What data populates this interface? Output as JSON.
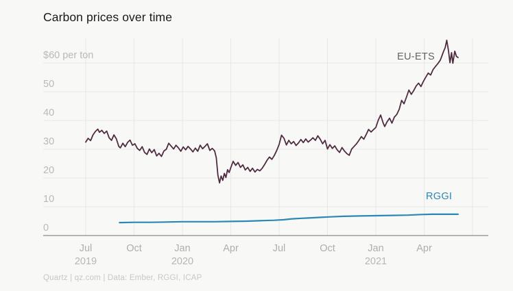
{
  "footer": {
    "credit": "Quartz | qz.com | Data: Ember, RGGI, ICAP"
  },
  "colors": {
    "background": "#f8f8f7",
    "grid": "#e7e7e4",
    "axis": "#8a8a87",
    "eu_ets": "#4f2b40",
    "rggi": "#2b87b4",
    "title_text": "#191919",
    "tick_text": "#b2b2af"
  },
  "chart_data": {
    "type": "line",
    "title": "Carbon prices over time",
    "xlabel": "",
    "ylabel": "$ per ton",
    "ylim": [
      0,
      60
    ],
    "x_unit": "months since Jul 2019",
    "grid": "on",
    "legend_position": "inline-annotations",
    "yticks": [
      {
        "value": 0,
        "label": "0"
      },
      {
        "value": 10,
        "label": "10"
      },
      {
        "value": 20,
        "label": "20"
      },
      {
        "value": 30,
        "label": "30"
      },
      {
        "value": 40,
        "label": "40"
      },
      {
        "value": 50,
        "label": "50"
      },
      {
        "value": 60,
        "label": "$60 per ton"
      }
    ],
    "xticks": [
      {
        "m": 0,
        "label": "Jul",
        "year": "2019"
      },
      {
        "m": 3,
        "label": "Oct",
        "year": ""
      },
      {
        "m": 6,
        "label": "Jan",
        "year": "2020"
      },
      {
        "m": 9,
        "label": "Apr",
        "year": ""
      },
      {
        "m": 12,
        "label": "Jul",
        "year": ""
      },
      {
        "m": 15,
        "label": "Oct",
        "year": ""
      },
      {
        "m": 18,
        "label": "Jan",
        "year": "2021"
      },
      {
        "m": 21,
        "label": "Apr",
        "year": ""
      },
      {
        "m": 24,
        "label": "",
        "year": ""
      }
    ],
    "series": [
      {
        "id": "eu-ets",
        "name": "EU-ETS",
        "color": "#4f2b40",
        "width": 1.8,
        "points": [
          [
            0.0,
            32.5
          ],
          [
            0.15,
            33.8
          ],
          [
            0.3,
            33.0
          ],
          [
            0.45,
            35.0
          ],
          [
            0.6,
            36.2
          ],
          [
            0.75,
            37.0
          ],
          [
            0.85,
            35.9
          ],
          [
            1.0,
            36.6
          ],
          [
            1.15,
            35.5
          ],
          [
            1.3,
            36.3
          ],
          [
            1.45,
            34.0
          ],
          [
            1.6,
            33.1
          ],
          [
            1.75,
            35.0
          ],
          [
            1.9,
            33.6
          ],
          [
            2.05,
            31.0
          ],
          [
            2.15,
            30.5
          ],
          [
            2.3,
            32.1
          ],
          [
            2.45,
            30.9
          ],
          [
            2.6,
            32.4
          ],
          [
            2.75,
            33.2
          ],
          [
            2.9,
            31.4
          ],
          [
            3.05,
            31.9
          ],
          [
            3.2,
            30.3
          ],
          [
            3.35,
            29.6
          ],
          [
            3.5,
            30.9
          ],
          [
            3.65,
            28.9
          ],
          [
            3.8,
            28.2
          ],
          [
            3.95,
            30.1
          ],
          [
            4.1,
            28.8
          ],
          [
            4.25,
            29.9
          ],
          [
            4.4,
            27.7
          ],
          [
            4.55,
            28.6
          ],
          [
            4.7,
            27.5
          ],
          [
            4.85,
            29.4
          ],
          [
            5.0,
            30.0
          ],
          [
            5.15,
            32.1
          ],
          [
            5.3,
            31.1
          ],
          [
            5.45,
            30.1
          ],
          [
            5.6,
            31.4
          ],
          [
            5.75,
            30.5
          ],
          [
            5.9,
            29.3
          ],
          [
            6.05,
            30.8
          ],
          [
            6.2,
            29.8
          ],
          [
            6.35,
            31.0
          ],
          [
            6.5,
            30.1
          ],
          [
            6.65,
            29.1
          ],
          [
            6.8,
            30.4
          ],
          [
            6.95,
            29.3
          ],
          [
            7.1,
            31.4
          ],
          [
            7.25,
            30.2
          ],
          [
            7.4,
            31.0
          ],
          [
            7.55,
            31.9
          ],
          [
            7.7,
            29.6
          ],
          [
            7.85,
            30.3
          ],
          [
            8.0,
            29.4
          ],
          [
            8.1,
            27.0
          ],
          [
            8.2,
            21.0
          ],
          [
            8.3,
            18.3
          ],
          [
            8.4,
            20.7
          ],
          [
            8.5,
            19.2
          ],
          [
            8.6,
            21.6
          ],
          [
            8.7,
            20.2
          ],
          [
            8.8,
            22.9
          ],
          [
            8.9,
            21.9
          ],
          [
            9.0,
            23.6
          ],
          [
            9.15,
            25.8
          ],
          [
            9.3,
            24.4
          ],
          [
            9.45,
            25.4
          ],
          [
            9.6,
            23.7
          ],
          [
            9.75,
            24.6
          ],
          [
            9.9,
            22.8
          ],
          [
            10.05,
            23.7
          ],
          [
            10.2,
            22.3
          ],
          [
            10.35,
            23.4
          ],
          [
            10.5,
            22.1
          ],
          [
            10.65,
            23.0
          ],
          [
            10.8,
            22.5
          ],
          [
            10.95,
            23.4
          ],
          [
            11.1,
            24.7
          ],
          [
            11.25,
            26.2
          ],
          [
            11.4,
            27.3
          ],
          [
            11.55,
            26.5
          ],
          [
            11.7,
            27.8
          ],
          [
            11.85,
            29.6
          ],
          [
            12.0,
            31.7
          ],
          [
            12.15,
            34.9
          ],
          [
            12.3,
            33.8
          ],
          [
            12.45,
            31.5
          ],
          [
            12.6,
            33.1
          ],
          [
            12.75,
            31.9
          ],
          [
            12.9,
            32.7
          ],
          [
            13.05,
            31.3
          ],
          [
            13.2,
            32.2
          ],
          [
            13.35,
            33.4
          ],
          [
            13.5,
            32.3
          ],
          [
            13.65,
            33.6
          ],
          [
            13.8,
            32.5
          ],
          [
            13.95,
            33.2
          ],
          [
            14.1,
            34.0
          ],
          [
            14.25,
            33.1
          ],
          [
            14.4,
            34.7
          ],
          [
            14.55,
            33.5
          ],
          [
            14.7,
            31.9
          ],
          [
            14.85,
            33.1
          ],
          [
            15.0,
            30.1
          ],
          [
            15.15,
            31.6
          ],
          [
            15.3,
            30.3
          ],
          [
            15.45,
            31.2
          ],
          [
            15.6,
            29.8
          ],
          [
            15.75,
            28.9
          ],
          [
            15.9,
            30.6
          ],
          [
            16.05,
            29.4
          ],
          [
            16.2,
            28.5
          ],
          [
            16.35,
            27.9
          ],
          [
            16.5,
            30.1
          ],
          [
            16.65,
            31.0
          ],
          [
            16.8,
            31.9
          ],
          [
            16.95,
            33.1
          ],
          [
            17.1,
            34.4
          ],
          [
            17.25,
            33.5
          ],
          [
            17.4,
            35.1
          ],
          [
            17.55,
            36.9
          ],
          [
            17.7,
            36.0
          ],
          [
            17.85,
            36.8
          ],
          [
            18.0,
            37.6
          ],
          [
            18.15,
            40.1
          ],
          [
            18.3,
            41.9
          ],
          [
            18.45,
            39.2
          ],
          [
            18.55,
            37.9
          ],
          [
            18.7,
            39.6
          ],
          [
            18.85,
            40.8
          ],
          [
            19.0,
            39.1
          ],
          [
            19.15,
            41.2
          ],
          [
            19.3,
            42.1
          ],
          [
            19.45,
            43.9
          ],
          [
            19.6,
            47.0
          ],
          [
            19.75,
            45.8
          ],
          [
            19.9,
            48.1
          ],
          [
            20.05,
            50.6
          ],
          [
            20.2,
            49.1
          ],
          [
            20.35,
            50.4
          ],
          [
            20.5,
            52.0
          ],
          [
            20.65,
            53.0
          ],
          [
            20.8,
            51.8
          ],
          [
            20.95,
            53.6
          ],
          [
            21.1,
            55.1
          ],
          [
            21.25,
            56.5
          ],
          [
            21.4,
            55.8
          ],
          [
            21.55,
            57.7
          ],
          [
            21.7,
            58.8
          ],
          [
            21.85,
            59.8
          ],
          [
            22.0,
            61.0
          ],
          [
            22.1,
            62.5
          ],
          [
            22.2,
            64.0
          ],
          [
            22.3,
            65.3
          ],
          [
            22.4,
            67.9
          ],
          [
            22.5,
            64.5
          ],
          [
            22.6,
            60.1
          ],
          [
            22.7,
            63.6
          ],
          [
            22.78,
            59.9
          ],
          [
            22.9,
            64.1
          ],
          [
            23.0,
            62.3
          ],
          [
            23.1,
            61.9
          ]
        ]
      },
      {
        "id": "rggi",
        "name": "RGGI",
        "color": "#2b87b4",
        "width": 2.2,
        "points": [
          [
            2.1,
            4.5
          ],
          [
            3.0,
            4.6
          ],
          [
            4.0,
            4.6
          ],
          [
            5.0,
            4.7
          ],
          [
            6.0,
            4.8
          ],
          [
            7.0,
            4.8
          ],
          [
            8.0,
            4.8
          ],
          [
            9.0,
            4.9
          ],
          [
            10.0,
            5.0
          ],
          [
            11.0,
            5.2
          ],
          [
            11.7,
            5.3
          ],
          [
            12.3,
            5.5
          ],
          [
            12.8,
            5.8
          ],
          [
            13.4,
            6.0
          ],
          [
            13.8,
            6.1
          ],
          [
            14.5,
            6.3
          ],
          [
            15.2,
            6.5
          ],
          [
            16.0,
            6.7
          ],
          [
            17.0,
            6.8
          ],
          [
            18.0,
            6.9
          ],
          [
            19.0,
            7.0
          ],
          [
            20.0,
            7.1
          ],
          [
            20.8,
            7.3
          ],
          [
            21.5,
            7.4
          ],
          [
            22.3,
            7.4
          ],
          [
            23.1,
            7.4
          ]
        ]
      }
    ]
  }
}
